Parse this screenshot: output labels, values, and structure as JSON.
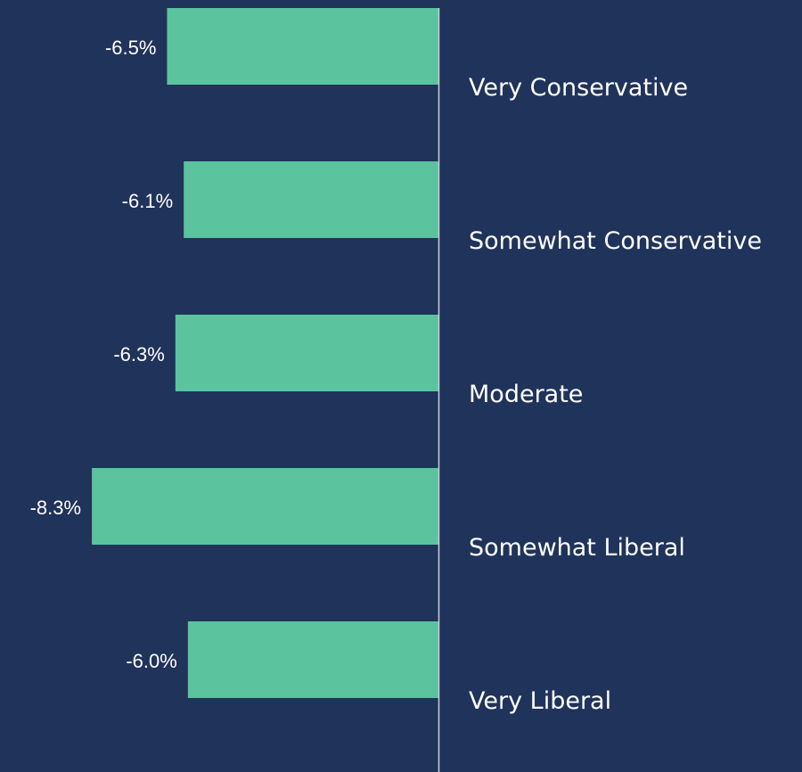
{
  "colors": {
    "background": "#20335a",
    "bar": "#5bc39d",
    "axis": "#c9d0dc",
    "text": "#ffffff"
  },
  "chart_data": {
    "type": "bar",
    "orientation": "horizontal",
    "categories": [
      "Very Conservative",
      "Somewhat Conservative",
      "Moderate",
      "Somewhat Liberal",
      "Very Liberal"
    ],
    "values": [
      -6.5,
      -6.1,
      -6.3,
      -8.3,
      -6.0
    ],
    "value_labels": [
      "-6.5%",
      "-6.1%",
      "-6.3%",
      "-8.3%",
      "-6.0%"
    ],
    "unit": "%",
    "xlim": [
      -10.5,
      0
    ],
    "grid": false,
    "legend": "none",
    "data_labels": "outside-end"
  }
}
